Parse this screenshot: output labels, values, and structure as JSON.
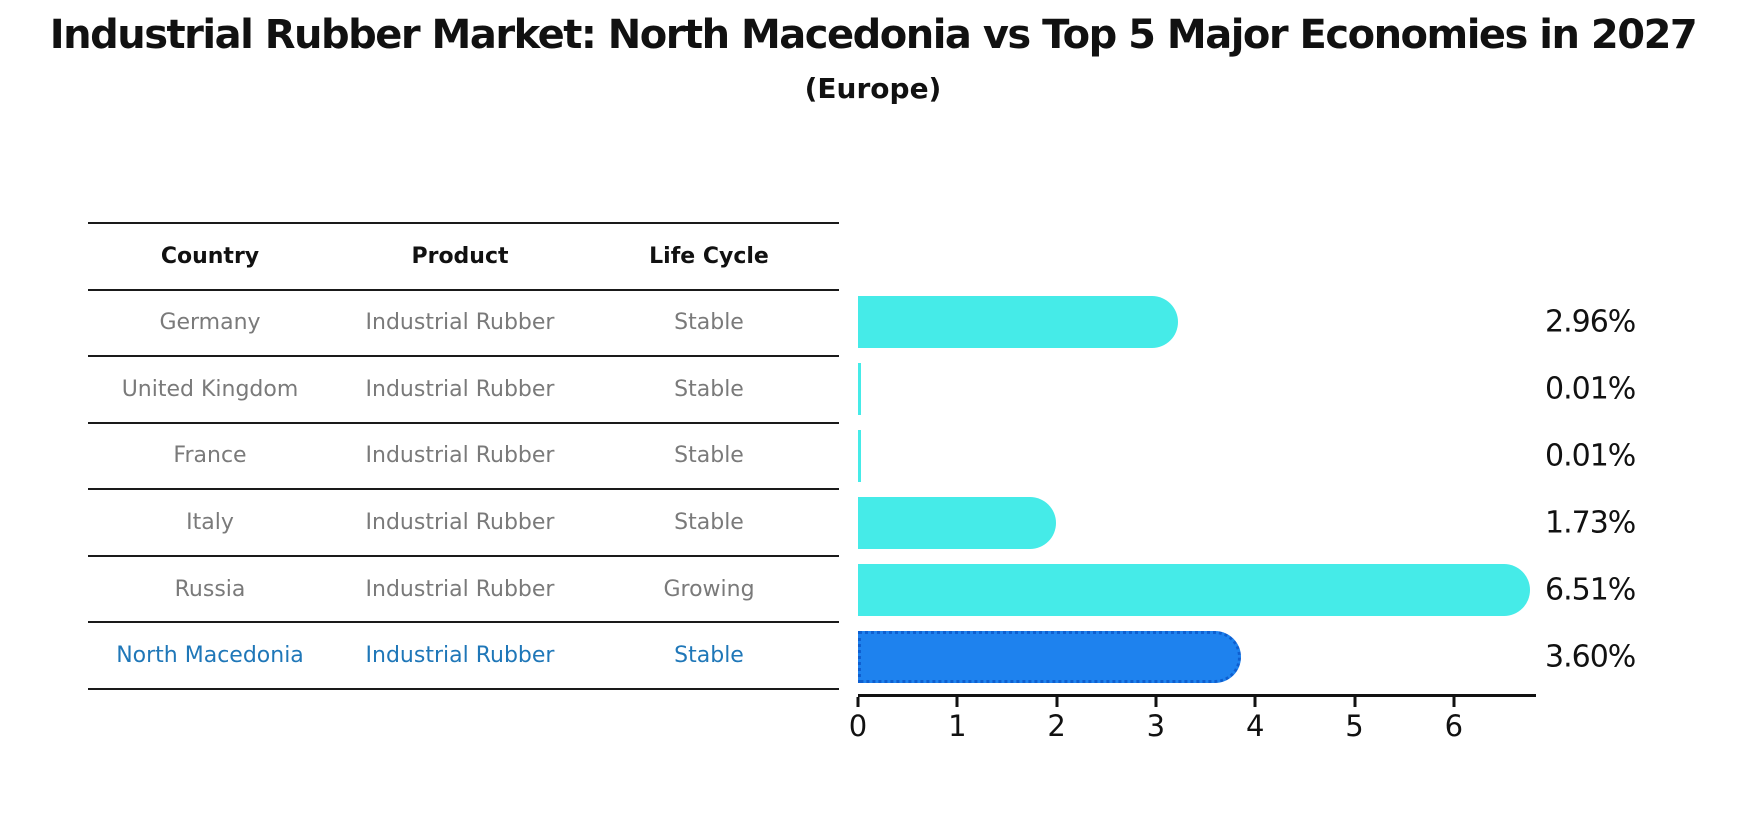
{
  "title": "Industrial Rubber Market: North Macedonia vs Top 5 Major Economies in 2027",
  "subtitle": "(Europe)",
  "table": {
    "headers": [
      "Country",
      "Product",
      "Life Cycle"
    ],
    "rows": [
      {
        "country": "Germany",
        "product": "Industrial Rubber",
        "life_cycle": "Stable",
        "highlight": false
      },
      {
        "country": "United Kingdom",
        "product": "Industrial Rubber",
        "life_cycle": "Stable",
        "highlight": false
      },
      {
        "country": "France",
        "product": "Industrial Rubber",
        "life_cycle": "Stable",
        "highlight": false
      },
      {
        "country": "Italy",
        "product": "Industrial Rubber",
        "life_cycle": "Stable",
        "highlight": false
      },
      {
        "country": "Russia",
        "product": "Industrial Rubber",
        "life_cycle": "Growing",
        "highlight": false
      },
      {
        "country": "North Macedonia",
        "product": "Industrial Rubber",
        "life_cycle": "Stable",
        "highlight": true
      }
    ]
  },
  "chart_data": {
    "type": "bar",
    "orientation": "horizontal",
    "title": "Industrial Rubber Market: North Macedonia vs Top 5 Major Economies in 2027",
    "subtitle": "(Europe)",
    "categories": [
      "Germany",
      "United Kingdom",
      "France",
      "Italy",
      "Russia",
      "North Macedonia"
    ],
    "values": [
      2.96,
      0.01,
      0.01,
      1.73,
      6.51,
      3.6
    ],
    "value_labels": [
      "2.96%",
      "0.01%",
      "0.01%",
      "1.73%",
      "6.51%",
      "3.60%"
    ],
    "xticks": [
      0,
      1,
      2,
      3,
      4,
      5,
      6
    ],
    "xlim": [
      0,
      6.9
    ],
    "xlabel": "",
    "ylabel": "",
    "grid": false,
    "legend": false,
    "highlight_index": 5
  },
  "colors": {
    "bar": "#45EBE8",
    "highlight_bar": "#1E82EE",
    "highlight_bar_border": "#0E5FD0",
    "highlight_text": "#1F77B8",
    "row_text": "#7A7A7A",
    "table_border": "#1A1A1A"
  }
}
